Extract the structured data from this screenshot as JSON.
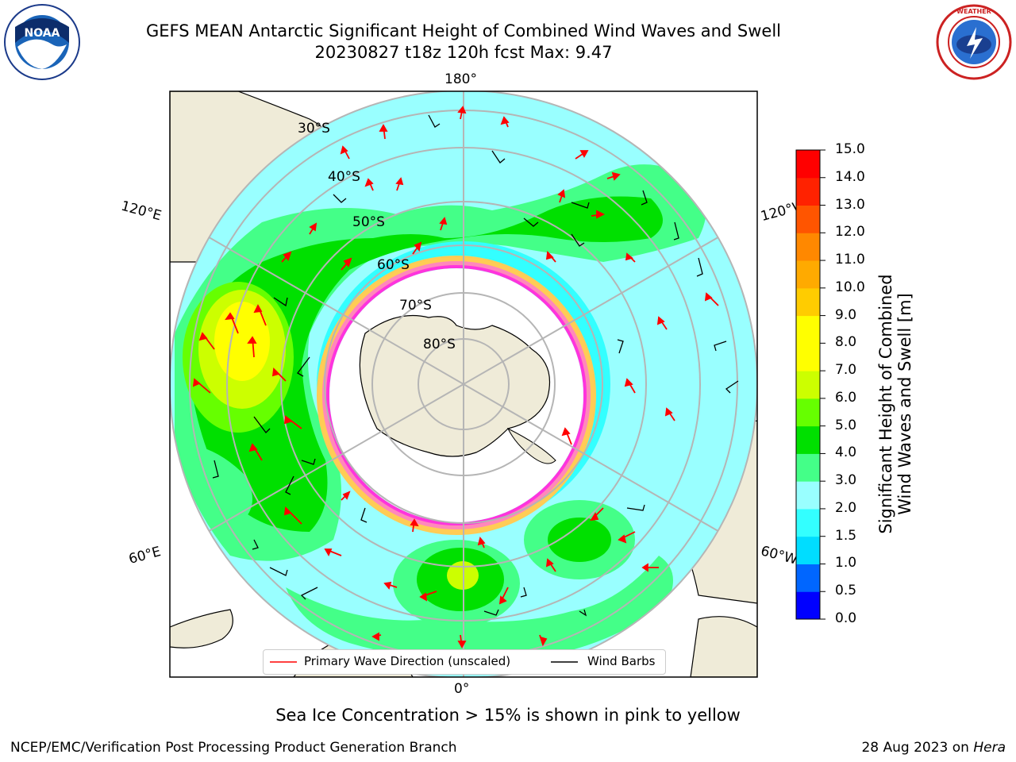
{
  "title": {
    "line1": "GEFS MEAN Antarctic Significant Height of Combined Wind Waves and Swell",
    "line2": "20230827 t18z 120h fcst   Max: 9.47"
  },
  "logos": {
    "left": "NOAA",
    "right": "NATIONAL WEATHER SERVICE"
  },
  "map": {
    "projection": "south-polar-stereographic",
    "longitude_labels": {
      "top": "180°",
      "bottom": "0°",
      "upper_left": "120°E",
      "upper_right": "120°W",
      "lower_left": "60°E",
      "lower_right": "60°W"
    },
    "latitude_labels": [
      "30°S",
      "40°S",
      "50°S",
      "60°S",
      "70°S",
      "80°S"
    ],
    "max_value": 9.47,
    "land_color": "#efebd8",
    "sea_ice_colors": [
      "#ff33dd",
      "#ff88bb",
      "#ffcc55"
    ]
  },
  "colorbar": {
    "ticks": [
      "0.0",
      "0.5",
      "1.0",
      "1.5",
      "2.0",
      "3.0",
      "4.0",
      "5.0",
      "6.0",
      "7.0",
      "8.0",
      "9.0",
      "10.0",
      "11.0",
      "12.0",
      "13.0",
      "14.0",
      "15.0"
    ],
    "colors": [
      "#0000ff",
      "#0066ff",
      "#00ddff",
      "#33ffff",
      "#99ffff",
      "#44ff88",
      "#00e000",
      "#66ff00",
      "#ccff00",
      "#ffff00",
      "#ffff00",
      "#ffcc00",
      "#ffaa00",
      "#ff8800",
      "#ff5500",
      "#ff2200",
      "#ff0000"
    ],
    "label_line1": "Significant Height of Combined",
    "label_line2": "Wind Waves and Swell [m]"
  },
  "legend": {
    "items": [
      {
        "label": "Primary Wave Direction (unscaled)",
        "color": "#ff0000"
      },
      {
        "label": "Wind Barbs",
        "color": "#000000"
      }
    ]
  },
  "caption": "Sea Ice Concentration > 15% is shown in pink to yellow",
  "footer": {
    "left": "NCEP/EMC/Verification Post Processing Product Generation Branch",
    "right_date": "28 Aug 2023 on ",
    "right_host": "Hera"
  }
}
